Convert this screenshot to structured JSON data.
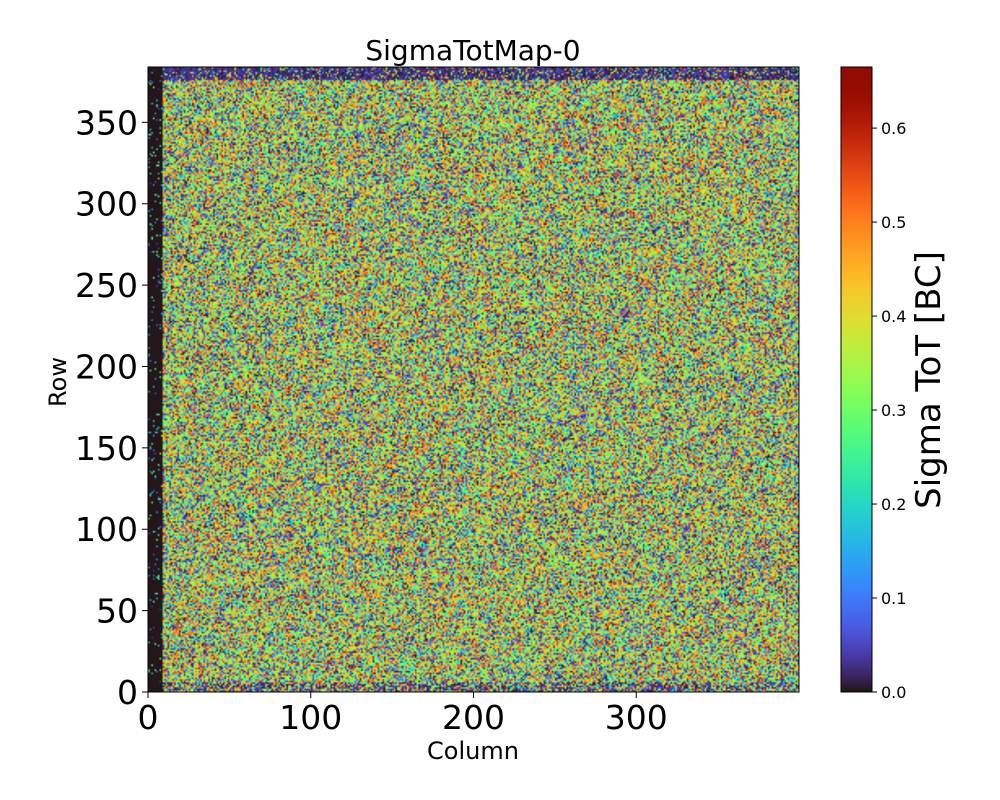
{
  "chart_data": {
    "type": "heatmap",
    "title": "SigmaTotMap-0",
    "xlabel": "Column",
    "ylabel": "Row",
    "xlim": [
      0,
      400
    ],
    "ylim": [
      0,
      384
    ],
    "x_ticks": [
      {
        "value": 0,
        "label": "0"
      },
      {
        "value": 100,
        "label": "100"
      },
      {
        "value": 200,
        "label": "200"
      },
      {
        "value": 300,
        "label": "300"
      }
    ],
    "y_ticks": [
      {
        "value": 0,
        "label": "0"
      },
      {
        "value": 50,
        "label": "50"
      },
      {
        "value": 100,
        "label": "100"
      },
      {
        "value": 150,
        "label": "150"
      },
      {
        "value": 200,
        "label": "200"
      },
      {
        "value": 250,
        "label": "250"
      },
      {
        "value": 300,
        "label": "300"
      },
      {
        "value": 350,
        "label": "350"
      }
    ],
    "colorbar": {
      "label": "Sigma ToT [BC]",
      "colormap": "turbo",
      "vmin": 0.0,
      "vmax": 0.665,
      "ticks": [
        {
          "value": 0.0,
          "label": "0.0"
        },
        {
          "value": 0.1,
          "label": "0.1"
        },
        {
          "value": 0.2,
          "label": "0.2"
        },
        {
          "value": 0.3,
          "label": "0.3"
        },
        {
          "value": 0.4,
          "label": "0.4"
        },
        {
          "value": 0.5,
          "label": "0.5"
        },
        {
          "value": 0.6,
          "label": "0.6"
        }
      ]
    },
    "data_description": {
      "dead_columns": [
        0,
        8
      ],
      "typical_value_range": [
        0.25,
        0.5
      ],
      "edge_rows_low": [
        376,
        384
      ]
    }
  }
}
